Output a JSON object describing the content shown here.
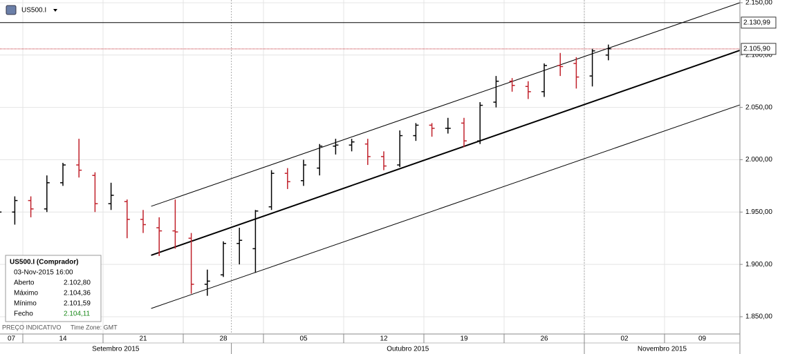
{
  "chart_data": {
    "type": "ohlc",
    "title": "US500.I",
    "up_color": "#000000",
    "down_color": "#c0202a",
    "grid": true,
    "x": [
      "2015-09-10",
      "2015-09-11",
      "2015-09-14",
      "2015-09-15",
      "2015-09-16",
      "2015-09-17",
      "2015-09-18",
      "2015-09-21",
      "2015-09-22",
      "2015-09-23",
      "2015-09-24",
      "2015-09-25",
      "2015-09-28",
      "2015-09-29",
      "2015-09-30",
      "2015-10-01",
      "2015-10-02",
      "2015-10-05",
      "2015-10-06",
      "2015-10-07",
      "2015-10-08",
      "2015-10-09",
      "2015-10-12",
      "2015-10-13",
      "2015-10-14",
      "2015-10-15",
      "2015-10-16",
      "2015-10-19",
      "2015-10-20",
      "2015-10-21",
      "2015-10-22",
      "2015-10-23",
      "2015-10-26",
      "2015-10-27",
      "2015-10-28",
      "2015-10-29",
      "2015-10-30",
      "2015-11-02",
      "2015-11-03"
    ],
    "open": [
      1945,
      1950,
      1961,
      1953,
      1978,
      1995,
      1985,
      1958,
      1960,
      1943,
      1935,
      1932,
      1925,
      1881,
      1890,
      1920,
      1915,
      1955,
      1987,
      1980,
      1992,
      2013,
      2014,
      2015,
      2003,
      1995,
      2023,
      2033,
      2030,
      2035,
      2018,
      2055,
      2075,
      2070,
      2065,
      2090,
      2092,
      2080,
      2100
    ],
    "high": [
      1960,
      1965,
      1965,
      1985,
      1997,
      2020,
      1988,
      1978,
      1962,
      1952,
      1945,
      1962,
      1930,
      1895,
      1922,
      1935,
      1952,
      1990,
      1992,
      2000,
      2015,
      2020,
      2020,
      2020,
      2008,
      2028,
      2035,
      2035,
      2040,
      2040,
      2055,
      2080,
      2078,
      2075,
      2092,
      2102,
      2098,
      2106,
      2110
    ],
    "low": [
      1935,
      1938,
      1945,
      1950,
      1975,
      1983,
      1950,
      1952,
      1925,
      1930,
      1908,
      1915,
      1872,
      1870,
      1888,
      1900,
      1892,
      1952,
      1972,
      1975,
      1985,
      2005,
      2008,
      1995,
      1990,
      1993,
      2018,
      2022,
      2025,
      2012,
      2015,
      2050,
      2065,
      2058,
      2060,
      2080,
      2068,
      2070,
      2095
    ],
    "close": [
      1950,
      1961,
      1953,
      1978,
      1995,
      1990,
      1958,
      1966,
      1943,
      1938,
      1932,
      1931,
      1881,
      1884,
      1920,
      1923,
      1951,
      1987,
      1979,
      1995,
      2013,
      2014,
      2017,
      2003,
      1994,
      2023,
      2033,
      2030,
      2030,
      2018,
      2052,
      2075,
      2071,
      2065,
      2090,
      2089,
      2079,
      2104,
      2106
    ],
    "xlim": [
      "2015-09-07",
      "2015-11-16"
    ],
    "xticks": [
      {
        "value": "2015-09-07",
        "label": "07"
      },
      {
        "value": "2015-09-14",
        "label": "14"
      },
      {
        "value": "2015-09-21",
        "label": "21"
      },
      {
        "value": "2015-09-28",
        "label": "28"
      },
      {
        "value": "2015-10-05",
        "label": "05"
      },
      {
        "value": "2015-10-12",
        "label": "12"
      },
      {
        "value": "2015-10-19",
        "label": "19"
      },
      {
        "value": "2015-10-26",
        "label": "26"
      },
      {
        "value": "2015-11-02",
        "label": "02"
      },
      {
        "value": "2015-11-09",
        "label": "09"
      }
    ],
    "months": [
      {
        "value": "2015-09-01",
        "label": "Setembro 2015"
      },
      {
        "value": "2015-10-01",
        "label": "Outubro 2015"
      },
      {
        "value": "2015-11-01",
        "label": "Novembro 2015"
      }
    ],
    "ylim": [
      1833.5,
      2152.6
    ],
    "yticks": [
      {
        "value": 1850,
        "label": "1.850,00"
      },
      {
        "value": 1900,
        "label": "1.900,00"
      },
      {
        "value": 1950,
        "label": "1.950,00"
      },
      {
        "value": 2000,
        "label": "2.000,00"
      },
      {
        "value": 2050,
        "label": "2.050,00"
      },
      {
        "value": 2100,
        "label": "2.100,00"
      },
      {
        "value": 2150,
        "label": "2.150,00"
      }
    ],
    "levels": [
      {
        "value": 2130.99,
        "label": "2.130,99",
        "color": "#000000"
      },
      {
        "value": 2105.9,
        "label": "2.105,90",
        "color": "#c0202a"
      }
    ],
    "trend_lines": [
      {
        "x": [
          "2015-09-24",
          "2015-11-16"
        ],
        "values": [
          1955.5,
          2151.6
        ],
        "width": 1
      },
      {
        "x": [
          "2015-09-24",
          "2015-11-16"
        ],
        "values": [
          1908.7,
          2106.1
        ],
        "width": 2
      },
      {
        "x": [
          "2015-09-24",
          "2015-11-16"
        ],
        "values": [
          1857.9,
          2054.0
        ],
        "width": 1
      }
    ],
    "info": {
      "title": "US500.I (Comprador)",
      "datetime": "03-Nov-2015 16:00",
      "rows": [
        {
          "label": "Aberto",
          "value": "2.102,80"
        },
        {
          "label": "Máximo",
          "value": "2.104,36"
        },
        {
          "label": "Mínimo",
          "value": "2.101,59"
        },
        {
          "label": "Fecho",
          "value": "2.104,11"
        }
      ]
    },
    "footer": "PREÇO INDICATIVO",
    "timezone": "Time Zone: GMT"
  }
}
